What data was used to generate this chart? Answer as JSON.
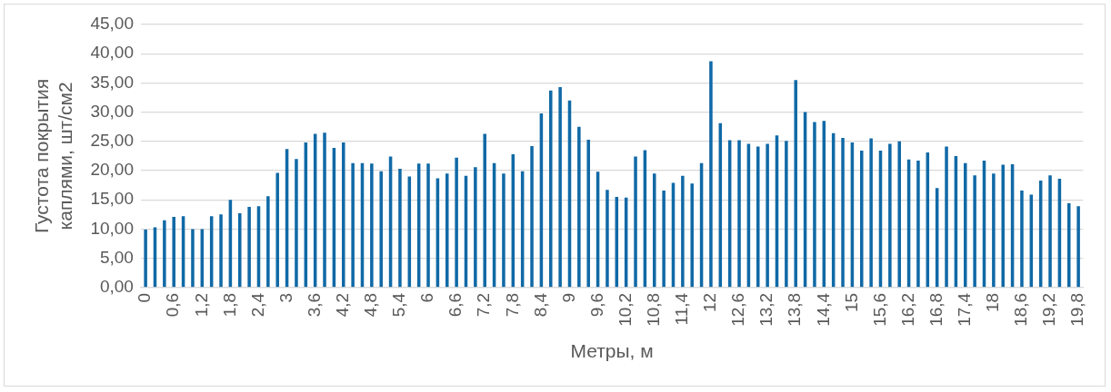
{
  "chart_data": {
    "type": "bar",
    "xlabel": "Метры, м",
    "ylabel": "Густота покрытия каплями, шт/см2",
    "categories": [
      "0",
      null,
      null,
      "0,6",
      null,
      null,
      "1,2",
      null,
      null,
      "1,8",
      null,
      null,
      "2,4",
      null,
      null,
      "3",
      null,
      null,
      "3,6",
      null,
      null,
      "4,2",
      null,
      null,
      "4,8",
      null,
      null,
      "5,4",
      null,
      null,
      "6",
      null,
      null,
      "6,6",
      null,
      null,
      "7,2",
      null,
      null,
      "7,8",
      null,
      null,
      "8,4",
      null,
      null,
      "9",
      null,
      null,
      "9,6",
      null,
      null,
      "10,2",
      null,
      null,
      "10,8",
      null,
      null,
      "11,4",
      null,
      null,
      "12",
      null,
      null,
      "12,6",
      null,
      null,
      "13,2",
      null,
      null,
      "13,8",
      null,
      null,
      "14,4",
      null,
      null,
      "15",
      null,
      null,
      "15,6",
      null,
      null,
      "16,2",
      null,
      null,
      "16,8",
      null,
      null,
      "17,4",
      null,
      null,
      "18",
      null,
      null,
      "18,6",
      null,
      null,
      "19,2",
      null,
      null,
      "19,8"
    ],
    "values": [
      9.9,
      10.3,
      11.5,
      12.1,
      12.2,
      10.0,
      10.0,
      12.2,
      12.5,
      15.0,
      12.7,
      13.8,
      13.9,
      15.6,
      19.6,
      23.7,
      22.0,
      24.8,
      26.3,
      26.5,
      23.9,
      24.8,
      21.3,
      21.3,
      21.2,
      19.9,
      22.4,
      20.3,
      19.0,
      21.2,
      21.2,
      18.7,
      19.5,
      22.2,
      19.1,
      20.6,
      26.3,
      21.3,
      19.5,
      22.8,
      19.9,
      24.2,
      29.8,
      33.7,
      34.3,
      32.0,
      27.5,
      25.3,
      19.8,
      16.7,
      15.5,
      15.4,
      22.4,
      23.5,
      19.5,
      16.6,
      17.9,
      19.1,
      17.8,
      21.3,
      38.7,
      28.1,
      25.2,
      25.2,
      24.6,
      24.1,
      24.6,
      26.0,
      25.1,
      35.5,
      30.0,
      28.3,
      28.5,
      26.4,
      25.6,
      24.8,
      23.4,
      25.5,
      23.4,
      24.6,
      25.0,
      21.9,
      21.7,
      23.1,
      17.0,
      24.1,
      22.5,
      21.3,
      19.2,
      21.7,
      19.5,
      21.0,
      21.1,
      16.6,
      15.9,
      18.3,
      19.2,
      18.6,
      14.4,
      13.9
    ],
    "color": "#1069a6",
    "ylim": [
      0,
      45
    ],
    "yticks": [
      {
        "value": 0,
        "label": "0,00"
      },
      {
        "value": 5,
        "label": "5,00"
      },
      {
        "value": 10,
        "label": "10,00"
      },
      {
        "value": 15,
        "label": "15,00"
      },
      {
        "value": 20,
        "label": "20,00"
      },
      {
        "value": 25,
        "label": "25,00"
      },
      {
        "value": 30,
        "label": "30,00"
      },
      {
        "value": 35,
        "label": "35,00"
      },
      {
        "value": 40,
        "label": "40,00"
      },
      {
        "value": 45,
        "label": "45,00"
      }
    ],
    "grid": "y",
    "legend": false
  }
}
